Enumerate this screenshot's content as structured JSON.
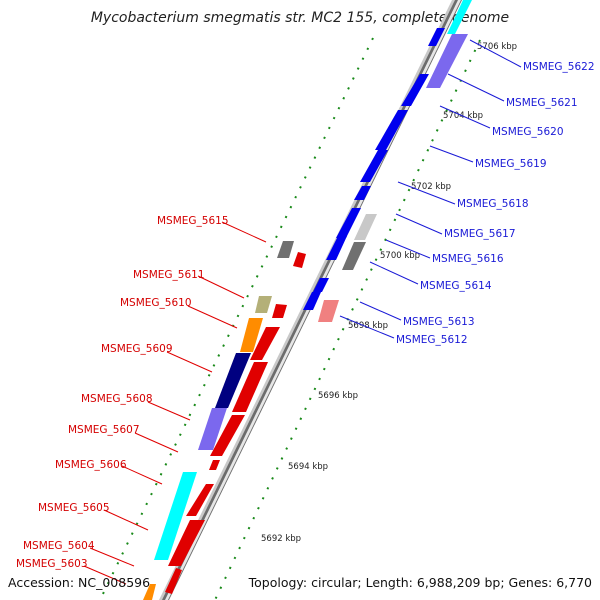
{
  "title": "Mycobacterium smegmatis str. MC2 155, complete genome",
  "accession": "Accession: NC_008596",
  "summary": "Topology: circular; Length: 6,988,209 bp; Genes: 6,770",
  "ticks": [
    "5706 kbp",
    "5704 kbp",
    "5702 kbp",
    "5700 kbp",
    "5698 kbp",
    "5696 kbp",
    "5694 kbp",
    "5692 kbp"
  ],
  "genes_left": [
    {
      "name": "MSMEG_5615",
      "color": "#e00000"
    },
    {
      "name": "MSMEG_5611",
      "color": "#e00000"
    },
    {
      "name": "MSMEG_5610",
      "color": "#e00000"
    },
    {
      "name": "MSMEG_5609",
      "color": "#e00000"
    },
    {
      "name": "MSMEG_5608",
      "color": "#e00000"
    },
    {
      "name": "MSMEG_5607",
      "color": "#e00000"
    },
    {
      "name": "MSMEG_5606",
      "color": "#e00000"
    },
    {
      "name": "MSMEG_5605",
      "color": "#e00000"
    },
    {
      "name": "MSMEG_5604",
      "color": "#e00000"
    },
    {
      "name": "MSMEG_5603",
      "color": "#e00000"
    }
  ],
  "genes_right": [
    {
      "name": "MSMEG_5622",
      "color": "#1010ff"
    },
    {
      "name": "MSMEG_5621",
      "color": "#1010ff"
    },
    {
      "name": "MSMEG_5620",
      "color": "#1010ff"
    },
    {
      "name": "MSMEG_5619",
      "color": "#1010ff"
    },
    {
      "name": "MSMEG_5618",
      "color": "#1010ff"
    },
    {
      "name": "MSMEG_5617",
      "color": "#1010ff"
    },
    {
      "name": "MSMEG_5616",
      "color": "#1010ff"
    },
    {
      "name": "MSMEG_5614",
      "color": "#1010ff"
    },
    {
      "name": "MSMEG_5613",
      "color": "#1010ff"
    },
    {
      "name": "MSMEG_5612",
      "color": "#1010ff"
    }
  ],
  "colors": {
    "forward_cds": "#ff0000",
    "reverse_cds": "#0000ee",
    "backbone": "#a8a8a8",
    "tick_green": "#1a8a1a"
  }
}
